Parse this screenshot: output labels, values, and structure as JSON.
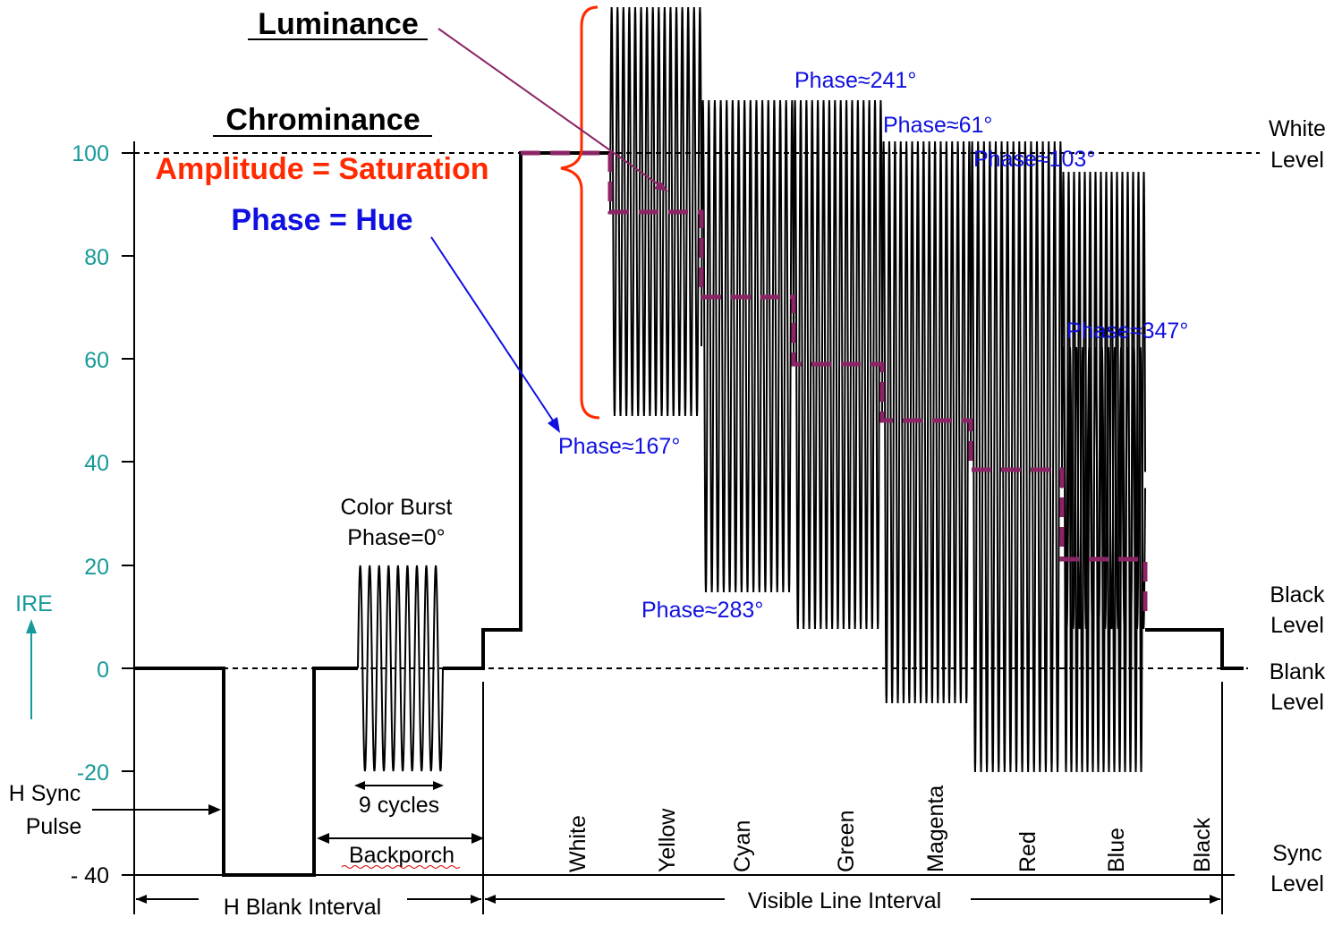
{
  "colors": {
    "axis_teal": "#179999",
    "signal": "#000000",
    "luminance_trace": "#8b2566",
    "saturation_red": "#ff2a00",
    "hue_blue": "#1010e0"
  },
  "axis": {
    "unit": "IRE",
    "ticks": [
      "100",
      "80",
      "60",
      "40",
      "20",
      "0",
      "-20",
      "- 40"
    ]
  },
  "titles": {
    "luminance": "Luminance",
    "chrominance": "Chrominance",
    "amplitude": "Amplitude = Saturation",
    "phase": "Phase = Hue"
  },
  "burst": {
    "label_line1": "Color Burst",
    "label_line2": "Phase=0°",
    "cycles": "9 cycles",
    "backporch": "Backporch"
  },
  "levels": {
    "white_1": "White",
    "white_2": "Level",
    "black_1": "Black",
    "black_2": "Level",
    "blank_1": "Blank",
    "blank_2": "Level",
    "sync_1": "Sync",
    "sync_2": "Level"
  },
  "hsync": {
    "line1": "H Sync",
    "line2": "Pulse"
  },
  "intervals": {
    "blank": "H Blank Interval",
    "visible": "Visible Line Interval"
  },
  "phases": [
    "Phase≈167°",
    "Phase≈241°",
    "Phase≈61°",
    "Phase≈103°",
    "Phase≈283°",
    "Phase≈347°"
  ],
  "bars": [
    "White",
    "Yellow",
    "Cyan",
    "Green",
    "Magenta",
    "Red",
    "Blue",
    "Black"
  ]
}
